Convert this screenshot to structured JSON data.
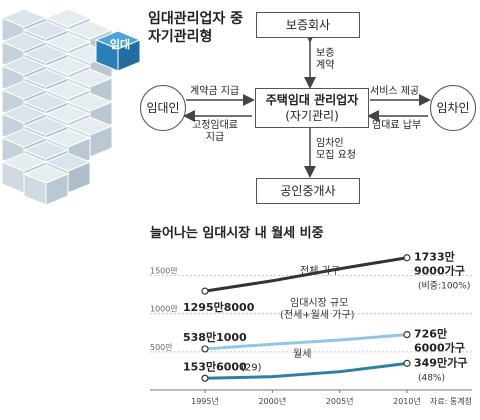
{
  "graphic": {
    "cube_label": "임대"
  },
  "diagram": {
    "title_line1": "임대관리업자 중",
    "title_line2": "자기관리형",
    "top_box": "보증회사",
    "center_box_line1": "주택임대 관리업자",
    "center_box_line2": "(자기관리)",
    "bottom_box": "공인중개사",
    "left_circle": "임대인",
    "right_circle": "임차인",
    "arrow_top_line1": "보증",
    "arrow_top_line2": "계약",
    "arrow_left_top": "계약금 지급",
    "arrow_left_bottom_line1": "고정임대료",
    "arrow_left_bottom_line2": "지급",
    "arrow_right_top": "서비스 제공",
    "arrow_right_bottom": "임대료 납부",
    "arrow_bottom_line1": "임차인",
    "arrow_bottom_line2": "모집 요청"
  },
  "chart_data": {
    "type": "line",
    "title": "늘어나는 임대시장 내 월세 비중",
    "x": [
      "1995년",
      "2000년",
      "2005년",
      "2010년"
    ],
    "y_ticks": [
      "1500만",
      "1000만",
      "500만"
    ],
    "ylim": [
      0,
      1900
    ],
    "source": "자료: 통계청",
    "series": [
      {
        "name": "전체 가구",
        "color": "#333333",
        "values": [
          1295.8,
          1431,
          1589,
          1733
        ],
        "start_label": "1295만8000",
        "end_label_line1": "1733만",
        "end_label_line2": "9000가구",
        "end_note": "(비중:100%)"
      },
      {
        "name": "임대시장 규모",
        "name_line2": "(전세+월세 가구)",
        "color": "#8fc7e6",
        "values": [
          538.1,
          600,
          655,
          726
        ],
        "start_label": "538만1000",
        "end_label_line1": "726만",
        "end_label_line2": "6000가구",
        "end_note": ""
      },
      {
        "name": "월세",
        "color": "#2e7fa6",
        "values": [
          153.6,
          175,
          240,
          349
        ],
        "start_label": "153만6000",
        "start_note": "(29)",
        "end_label_line1": "349만가구",
        "end_label_line2": "",
        "end_note": "(48%)"
      }
    ]
  }
}
